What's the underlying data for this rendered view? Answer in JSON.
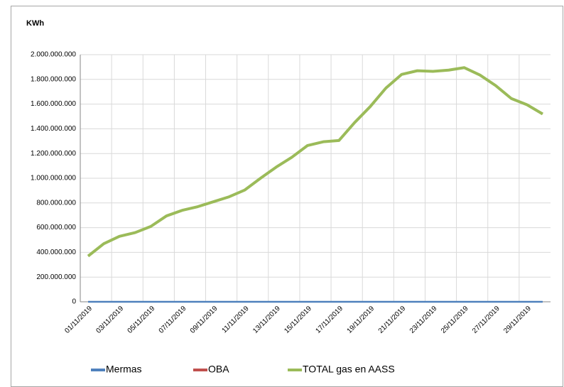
{
  "chart_data": {
    "type": "line",
    "y_label": "KWh",
    "categories": [
      "01/11/2019",
      null,
      "03/11/2019",
      null,
      "05/11/2019",
      null,
      "07/11/2019",
      null,
      "09/11/2019",
      null,
      "11/11/2019",
      null,
      "13/11/2019",
      null,
      "15/11/2019",
      null,
      "17/11/2019",
      null,
      "19/11/2019",
      null,
      "21/11/2019",
      null,
      "23/11/2019",
      null,
      "25/11/2019",
      null,
      "27/11/2019",
      null,
      "29/11/2019",
      null
    ],
    "series": [
      {
        "name": "Mermas",
        "color": "#4f81bd",
        "width": 2.5,
        "values": [
          0,
          0,
          0,
          0,
          0,
          0,
          0,
          0,
          0,
          0,
          0,
          0,
          0,
          0,
          0,
          0,
          0,
          0,
          0,
          0,
          0,
          0,
          0,
          0,
          0,
          0,
          0,
          0,
          0,
          0
        ]
      },
      {
        "name": "OBA",
        "color": "#c0504d",
        "width": 1.5,
        "values": [
          370000000,
          470000000,
          530000000,
          560000000,
          610000000,
          695000000,
          740000000,
          770000000,
          810000000,
          850000000,
          905000000,
          1000000000,
          1090000000,
          1170000000,
          1265000000,
          1295000000,
          1305000000,
          1450000000,
          1580000000,
          1730000000,
          1840000000,
          1870000000,
          1865000000,
          1875000000,
          1895000000,
          1835000000,
          1750000000,
          1645000000,
          1595000000,
          1520000000
        ]
      },
      {
        "name": "TOTAL gas en AASS",
        "color": "#9bbb59",
        "width": 4,
        "values": [
          370000000,
          470000000,
          530000000,
          560000000,
          610000000,
          695000000,
          740000000,
          770000000,
          810000000,
          850000000,
          905000000,
          1000000000,
          1090000000,
          1170000000,
          1265000000,
          1295000000,
          1305000000,
          1450000000,
          1580000000,
          1730000000,
          1840000000,
          1870000000,
          1865000000,
          1875000000,
          1895000000,
          1835000000,
          1750000000,
          1645000000,
          1595000000,
          1520000000
        ]
      }
    ],
    "ylim": [
      0,
      2000000000
    ],
    "yticks": [
      0,
      {
        "value": 200000000,
        "label": "200.000.000"
      },
      {
        "value": 400000000,
        "label": "400.000.000"
      },
      {
        "value": 600000000,
        "label": "600.000.000"
      },
      {
        "value": 800000000,
        "label": "800.000.000"
      },
      {
        "value": 1000000000,
        "label": "1.000.000.000"
      },
      {
        "value": 1200000000,
        "label": "1.200.000.000"
      },
      {
        "value": 1400000000,
        "label": "1.400.000.000"
      },
      {
        "value": 1600000000,
        "label": "1.600.000.000"
      },
      {
        "value": 1800000000,
        "label": "1.800.000.000"
      },
      {
        "value": 2000000000,
        "label": "2.000.000.000"
      }
    ],
    "grid": true,
    "legend": "bottom"
  }
}
